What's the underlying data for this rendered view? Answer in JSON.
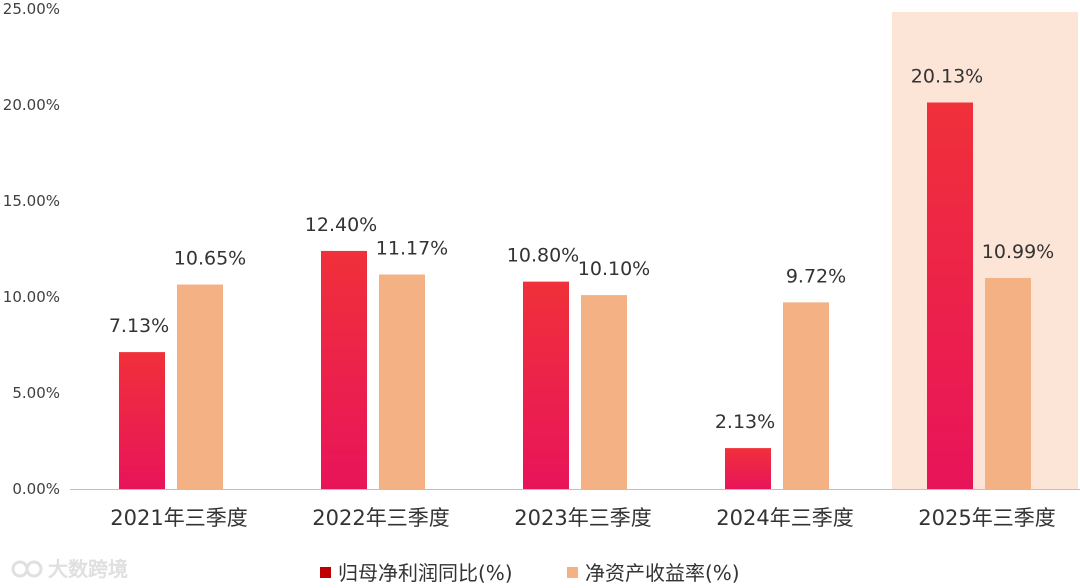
{
  "chart_data": {
    "type": "bar",
    "categories": [
      "2021年三季度",
      "2022年三季度",
      "2023年三季度",
      "2024年三季度",
      "2025年三季度"
    ],
    "series": [
      {
        "name": "归母净利润同比(%)",
        "values": [
          7.13,
          12.4,
          10.8,
          2.13,
          20.13
        ],
        "labels": [
          "7.13%",
          "12.40%",
          "10.80%",
          "2.13%",
          "20.13%"
        ]
      },
      {
        "name": "净资产收益率(%)",
        "values": [
          10.65,
          11.17,
          10.1,
          9.72,
          10.99
        ],
        "labels": [
          "10.65%",
          "11.17%",
          "10.10%",
          "9.72%",
          "10.99%"
        ]
      }
    ],
    "y_ticks": [
      "0.00%",
      "5.00%",
      "10.00%",
      "15.00%",
      "20.00%",
      "25.00%"
    ],
    "ylim": [
      0,
      25
    ],
    "highlight_category": "2025年三季度",
    "legend_position": "bottom-center",
    "grid": false,
    "colors": {
      "series1_top": "#f0303a",
      "series1_bottom": "#e8145a",
      "series1_legend": "#c00000",
      "series2": "#f4b184",
      "highlight_bg": "#fce4d6",
      "axis": "#bfbfbf"
    },
    "watermark": "大数跨境"
  }
}
